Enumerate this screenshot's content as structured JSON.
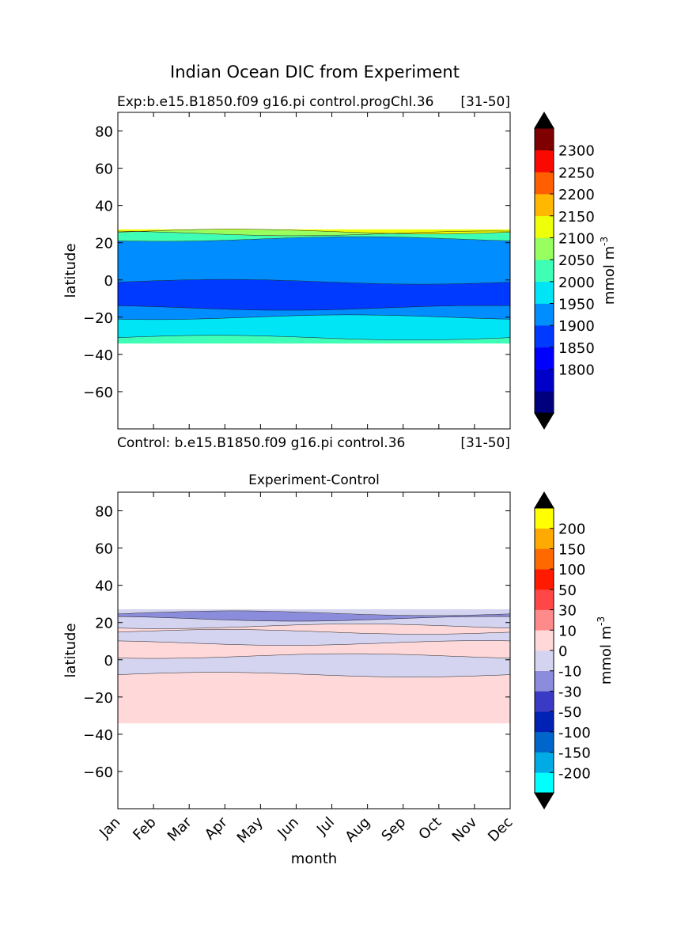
{
  "suptitle": "Indian Ocean DIC from Experiment",
  "chart_data": [
    {
      "type": "heatmap",
      "subtype": "filled-contour",
      "title_left": "Exp:b.e15.B1850.f09 g16.pi control.progChl.36",
      "title_right": "[31-50]",
      "bottom_left": "Control: b.e15.B1850.f09 g16.pi control.36",
      "bottom_right": "[31-50]",
      "xlabel": "",
      "ylabel": "latitude",
      "x": [
        "Jan",
        "Feb",
        "Mar",
        "Apr",
        "May",
        "Jun",
        "Jul",
        "Aug",
        "Sep",
        "Oct",
        "Nov",
        "Dec"
      ],
      "xlim": [
        0,
        11
      ],
      "ylim": [
        -80,
        90
      ],
      "yticks": [
        80,
        60,
        40,
        20,
        0,
        -20,
        -40,
        -60
      ],
      "colorbar": {
        "label": "mmol m",
        "label_sup": "-3",
        "extend": "both",
        "levels": [
          1750,
          1800,
          1850,
          1900,
          1950,
          2000,
          2050,
          2100,
          2150,
          2200,
          2250,
          2300,
          2350
        ],
        "tick_labels": [
          "2300",
          "2250",
          "2200",
          "2150",
          "2100",
          "2050",
          "2000",
          "1950",
          "1900",
          "1850",
          "1800"
        ],
        "under_color": "#000000",
        "over_color": "#000000",
        "colors": [
          "#00007f",
          "#0000c9",
          "#0000ff",
          "#0039ff",
          "#008dff",
          "#00e5f5",
          "#3fffb7",
          "#97ff5f",
          "#edff09",
          "#ffb700",
          "#ff5f00",
          "#fa0900",
          "#7f0000"
        ]
      },
      "bands": [
        {
          "lat": [
            -34,
            -31
          ],
          "value": 2025,
          "color": "#3fffb7"
        },
        {
          "lat": [
            -31,
            -20
          ],
          "value": 1975,
          "color": "#00e5f5"
        },
        {
          "lat": [
            -20,
            -15
          ],
          "value": 1925,
          "color": "#008dff"
        },
        {
          "lat": [
            -15,
            -1
          ],
          "value": 1875,
          "color": "#0039ff"
        },
        {
          "lat": [
            -1,
            22
          ],
          "value": 1925,
          "color": "#008dff"
        },
        {
          "lat": [
            22,
            25
          ],
          "value": 2025,
          "color": "#3fffb7"
        },
        {
          "lat": [
            25,
            26
          ],
          "value": 2075,
          "color": "#97ff5f"
        },
        {
          "lat": [
            26,
            27
          ],
          "value": 2125,
          "color": "#edff09"
        }
      ]
    },
    {
      "type": "heatmap",
      "subtype": "filled-contour",
      "title": "Experiment-Control",
      "xlabel": "month",
      "ylabel": "latitude",
      "x": [
        "Jan",
        "Feb",
        "Mar",
        "Apr",
        "May",
        "Jun",
        "Jul",
        "Aug",
        "Sep",
        "Oct",
        "Nov",
        "Dec"
      ],
      "xlim": [
        0,
        11
      ],
      "ylim": [
        -80,
        90
      ],
      "yticks": [
        80,
        60,
        40,
        20,
        0,
        -20,
        -40,
        -60
      ],
      "colorbar": {
        "label": "mmol m",
        "label_sup": "-3",
        "extend": "both",
        "tick_labels": [
          "200",
          "150",
          "100",
          "50",
          "30",
          "10",
          "0",
          "-10",
          "-30",
          "-50",
          "-100",
          "-150",
          "-200"
        ],
        "under_color": "#000000",
        "over_color": "#000000",
        "colors": [
          "#00ffff",
          "#00aae5",
          "#0066cc",
          "#0022b4",
          "#3a3ac4",
          "#8c8cdc",
          "#d4d4f0",
          "#ffd9d9",
          "#ff8a8a",
          "#ff4747",
          "#ff1a00",
          "#ff6a00",
          "#ffaa00",
          "#ffff00"
        ]
      },
      "bands": [
        {
          "lat": [
            -34,
            -8
          ],
          "value": 5,
          "color": "#ffd9d9"
        },
        {
          "lat": [
            -8,
            2
          ],
          "value": -5,
          "color": "#d4d4f0"
        },
        {
          "lat": [
            2,
            9
          ],
          "value": 5,
          "color": "#ffd9d9"
        },
        {
          "lat": [
            9,
            15
          ],
          "value": -5,
          "color": "#d4d4f0"
        },
        {
          "lat": [
            15,
            18
          ],
          "value": 5,
          "color": "#ffd9d9"
        },
        {
          "lat": [
            18,
            22
          ],
          "value": -5,
          "color": "#d4d4f0"
        },
        {
          "lat": [
            22,
            25
          ],
          "value": -20,
          "color": "#8c8cdc"
        },
        {
          "lat": [
            25,
            27
          ],
          "value": -5,
          "color": "#d4d4f0"
        }
      ]
    }
  ]
}
